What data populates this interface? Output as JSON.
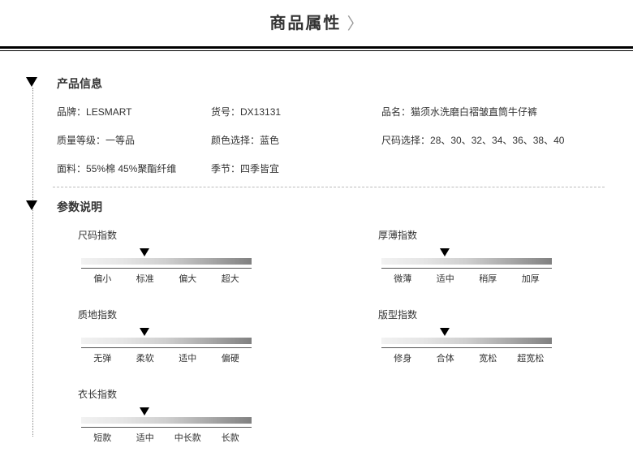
{
  "header": {
    "title": "商品属性"
  },
  "sections": {
    "product_info": {
      "title": "产品信息",
      "items": {
        "brand": {
          "label": "品牌：",
          "value": "LESMART"
        },
        "sku": {
          "label": "货号：",
          "value": "DX13131"
        },
        "name": {
          "label": "品名：",
          "value": "猫须水洗磨白褶皱直筒牛仔裤"
        },
        "grade": {
          "label": "质量等级：",
          "value": "一等品"
        },
        "color": {
          "label": "颜色选择：",
          "value": "蓝色"
        },
        "size": {
          "label": "尺码选择：",
          "value": "28、30、32、34、36、38、40"
        },
        "fabric": {
          "label": "面料：",
          "value": "55%棉 45%聚酯纤维"
        },
        "season": {
          "label": "季节：",
          "value": "四季皆宜"
        }
      }
    },
    "params": {
      "title": "参数说明",
      "gauges": {
        "size_idx": {
          "title": "尺码指数",
          "labels": [
            "偏小",
            "标准",
            "偏大",
            "超大"
          ],
          "pointer_percent": 37
        },
        "thick_idx": {
          "title": "厚薄指数",
          "labels": [
            "微薄",
            "适中",
            "稍厚",
            "加厚"
          ],
          "pointer_percent": 37
        },
        "texture_idx": {
          "title": "质地指数",
          "labels": [
            "无弹",
            "柔软",
            "适中",
            "偏硬"
          ],
          "pointer_percent": 37
        },
        "fit_idx": {
          "title": "版型指数",
          "labels": [
            "修身",
            "合体",
            "宽松",
            "超宽松"
          ],
          "pointer_percent": 37
        },
        "length_idx": {
          "title": "衣长指数",
          "labels": [
            "短款",
            "适中",
            "中长款",
            "长款"
          ],
          "pointer_percent": 37
        }
      }
    }
  },
  "style": {
    "gradient": [
      "#f2f2f2",
      "#e5e5e5",
      "#cfcfcf",
      "#a9a9a9",
      "#808080"
    ],
    "pointer_color": "#000000",
    "text_color": "#333333"
  }
}
